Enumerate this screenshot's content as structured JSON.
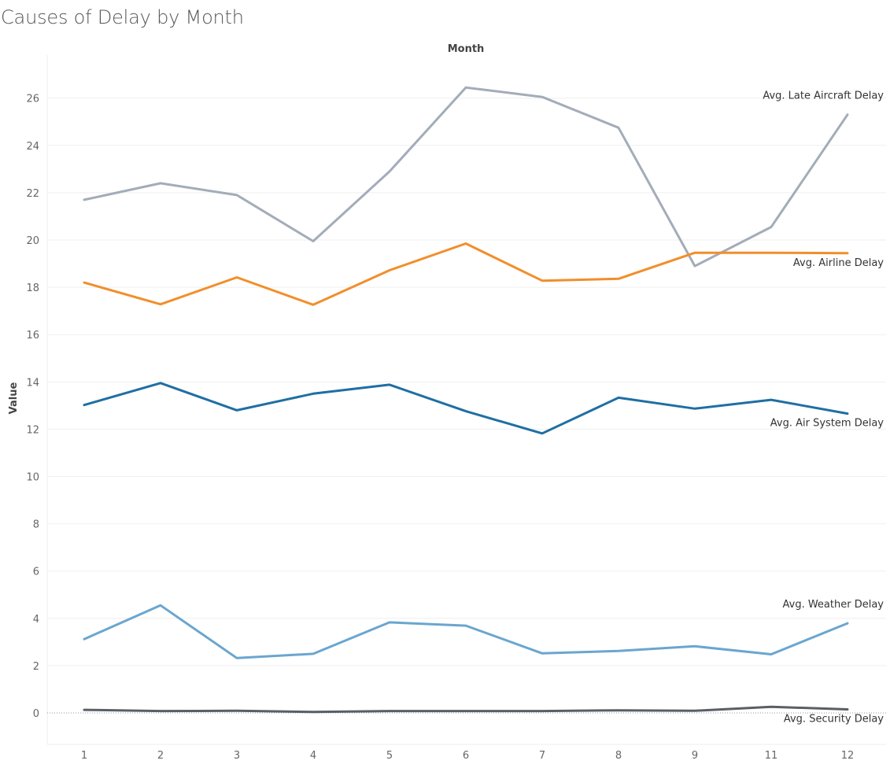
{
  "chart_data": {
    "type": "line",
    "title": "Causes of Delay by Month",
    "xlabel": "Month",
    "ylabel": "Value",
    "categories": [
      "1",
      "2",
      "3",
      "4",
      "5",
      "6",
      "7",
      "8",
      "9",
      "11",
      "12"
    ],
    "ylim": [
      -1.3,
      27.8
    ],
    "yticks": [
      0,
      2,
      4,
      6,
      8,
      10,
      12,
      14,
      16,
      18,
      20,
      22,
      24,
      26
    ],
    "grid": true,
    "legend": "none",
    "series": [
      {
        "name": "Avg. Late Aircraft Delay",
        "color": "#a3acb9",
        "values": [
          21.7,
          22.4,
          21.9,
          19.95,
          22.9,
          26.45,
          26.05,
          24.75,
          18.9,
          20.55,
          25.3
        ]
      },
      {
        "name": "Avg. Airline Delay",
        "color": "#f28e2b",
        "values": [
          18.2,
          17.28,
          18.42,
          17.26,
          18.72,
          19.85,
          18.28,
          18.36,
          19.46,
          19.46,
          19.44
        ]
      },
      {
        "name": "Avg. Air System Delay",
        "color": "#1f6fa3",
        "values": [
          13.02,
          13.95,
          12.8,
          13.5,
          13.88,
          12.76,
          11.82,
          13.33,
          12.87,
          13.24,
          12.66
        ]
      },
      {
        "name": "Avg. Weather Delay",
        "color": "#6aa6cf",
        "values": [
          3.12,
          4.55,
          2.32,
          2.5,
          3.83,
          3.69,
          2.52,
          2.62,
          2.82,
          2.48,
          3.79
        ]
      },
      {
        "name": "Avg. Security Delay",
        "color": "#5a5f66",
        "values": [
          0.13,
          0.08,
          0.09,
          0.04,
          0.08,
          0.08,
          0.08,
          0.11,
          0.09,
          0.26,
          0.15
        ]
      }
    ]
  }
}
